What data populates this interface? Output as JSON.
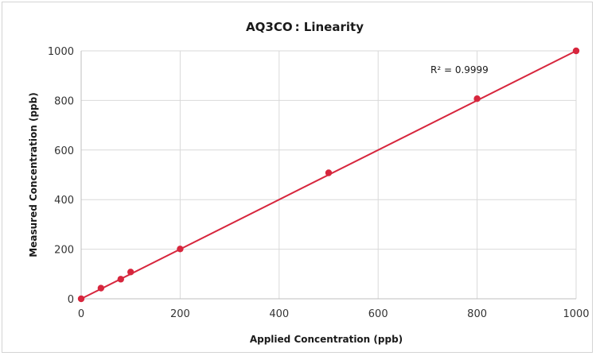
{
  "chart_data": {
    "type": "scatter",
    "title": "AQ3CO : Linearity",
    "xlabel": "Applied Concentration (ppb)",
    "ylabel": "Measured Concentration (ppb)",
    "xlim": [
      0,
      1000
    ],
    "ylim": [
      0,
      1000
    ],
    "x_ticks": [
      "0",
      "200",
      "400",
      "600",
      "800",
      "1000"
    ],
    "y_ticks": [
      "0",
      "200",
      "400",
      "600",
      "800",
      "1000"
    ],
    "grid": true,
    "legend": "none",
    "series": [
      {
        "x": [
          0,
          40,
          80,
          100,
          200,
          500,
          800,
          1000
        ],
        "y": [
          0,
          43,
          79,
          108,
          201,
          508,
          807,
          1000
        ],
        "color": "#d7263d"
      }
    ],
    "trendline": {
      "type": "linear",
      "from": [
        0,
        0
      ],
      "to": [
        1000,
        1000
      ],
      "color": "#d7263d"
    },
    "annotations": [
      {
        "text": "R² = 0.9999"
      }
    ]
  }
}
